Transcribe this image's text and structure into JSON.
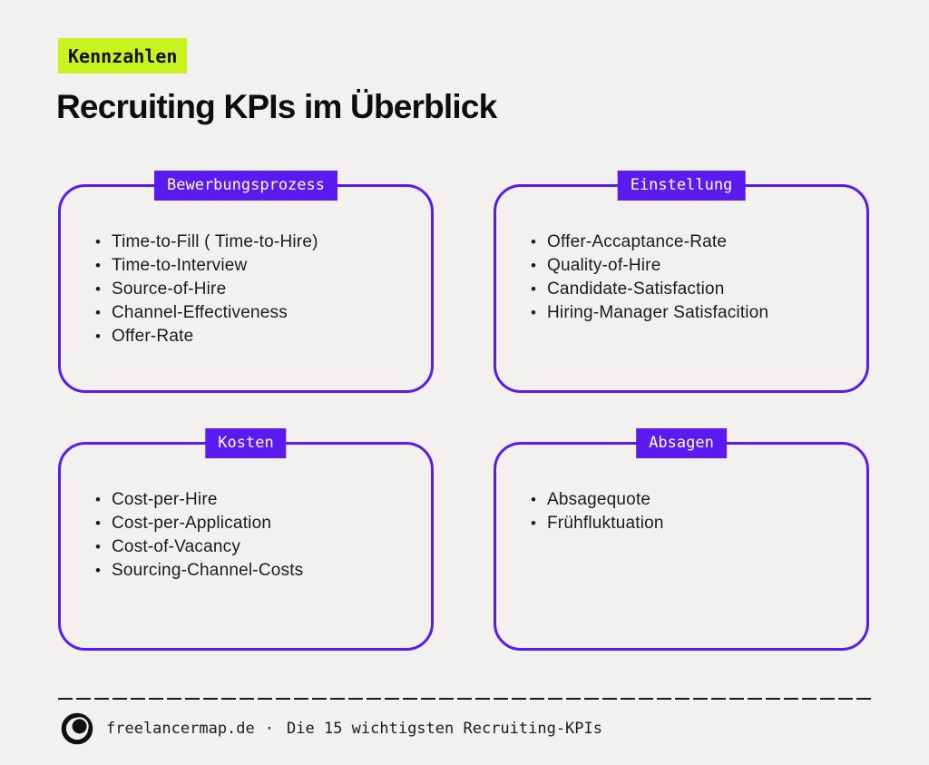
{
  "colors": {
    "background": "#f2f1ef",
    "accent_purple": "#5b1af0",
    "accent_lime": "#c9f31e",
    "text": "#161616",
    "badge_text": "#ffffff"
  },
  "header": {
    "eyebrow_badge": "Kennzahlen",
    "title": "Recruiting KPIs im Überblick"
  },
  "boxes": [
    {
      "id": "bewerbungsprozess",
      "label": "Bewerbungsprozess",
      "items": [
        "Time-to-Fill ( Time-to-Hire)",
        "Time-to-Interview",
        "Source-of-Hire",
        "Channel-Effectiveness",
        "Offer-Rate"
      ]
    },
    {
      "id": "einstellung",
      "label": "Einstellung",
      "items": [
        "Offer-Accaptance-Rate",
        "Quality-of-Hire",
        "Candidate-Satisfaction",
        "Hiring-Manager Satisfacition"
      ]
    },
    {
      "id": "kosten",
      "label": "Kosten",
      "items": [
        "Cost-per-Hire",
        "Cost-per-Application",
        "Cost-of-Vacancy",
        "Sourcing-Channel-Costs"
      ]
    },
    {
      "id": "absagen",
      "label": "Absagen",
      "items": [
        "Absagequote",
        "Frühfluktuation"
      ]
    }
  ],
  "footer": {
    "logo": "freelancermap-logo",
    "brand": "freelancermap.de",
    "separator": "·",
    "tagline": "Die 15 wichtigsten Recruiting-KPIs"
  }
}
